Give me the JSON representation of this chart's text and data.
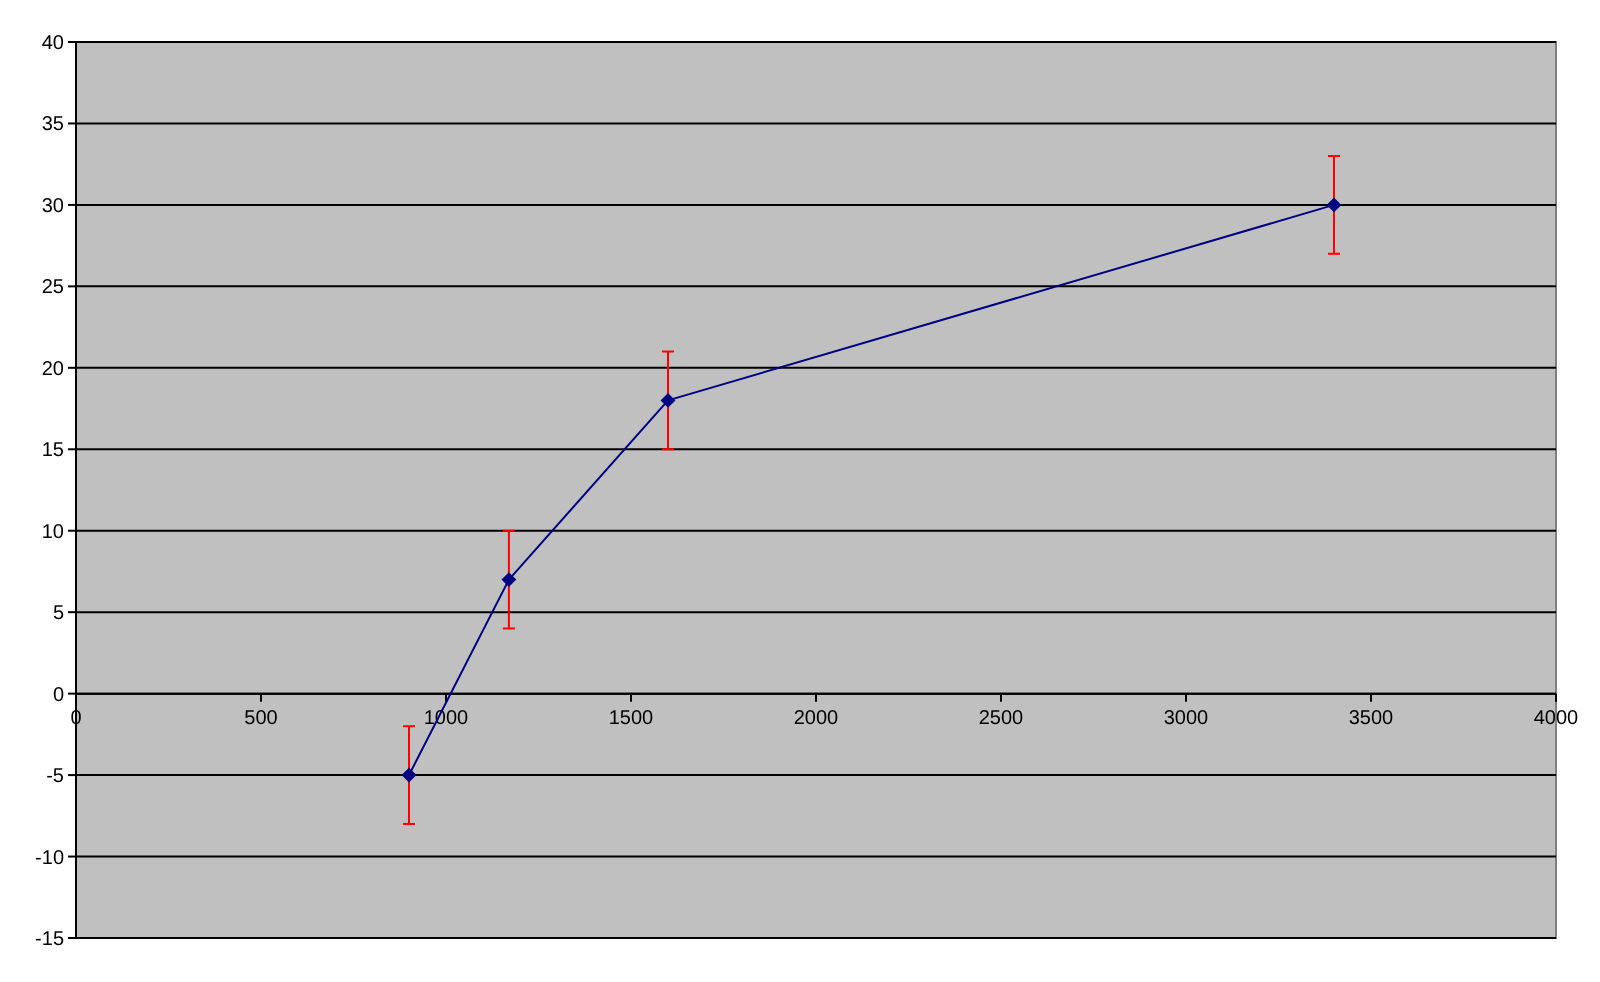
{
  "chart_data": {
    "type": "line",
    "x": [
      900,
      1170,
      1600,
      3400
    ],
    "series": [
      {
        "color": "#000080",
        "values": [
          -5,
          7,
          18,
          30
        ],
        "errors": [
          3,
          3,
          3,
          3
        ]
      }
    ],
    "xlim": [
      0,
      4000
    ],
    "xticks": [
      0,
      500,
      1000,
      1500,
      2000,
      2500,
      3000,
      3500,
      4000
    ],
    "ylim": [
      -15,
      40
    ],
    "yticks": [
      -15,
      -10,
      -5,
      0,
      5,
      10,
      15,
      20,
      25,
      30,
      35,
      40
    ],
    "grid": "y",
    "marker": "diamond",
    "line_style": "solid"
  }
}
